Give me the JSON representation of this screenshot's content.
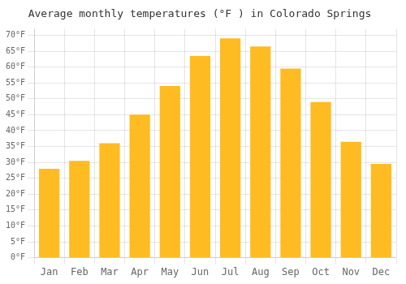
{
  "chart_data": {
    "type": "bar",
    "title": "Average monthly temperatures (°F ) in Colorado Springs",
    "categories": [
      "Jan",
      "Feb",
      "Mar",
      "Apr",
      "May",
      "Jun",
      "Jul",
      "Aug",
      "Sep",
      "Oct",
      "Nov",
      "Dec"
    ],
    "values": [
      28,
      30.5,
      36,
      45,
      54,
      63.5,
      69,
      66.5,
      59.5,
      49,
      36.5,
      29.5
    ],
    "color": "#FFBB22",
    "ylim": [
      0,
      72
    ],
    "yticks": [
      {
        "value": 0,
        "label": "0°F"
      },
      {
        "value": 5,
        "label": "5°F"
      },
      {
        "value": 10,
        "label": "10°F"
      },
      {
        "value": 15,
        "label": "15°F"
      },
      {
        "value": 20,
        "label": "20°F"
      },
      {
        "value": 25,
        "label": "25°F"
      },
      {
        "value": 30,
        "label": "30°F"
      },
      {
        "value": 35,
        "label": "35°F"
      },
      {
        "value": 40,
        "label": "40°F"
      },
      {
        "value": 45,
        "label": "45°F"
      },
      {
        "value": 50,
        "label": "50°F"
      },
      {
        "value": 55,
        "label": "55°F"
      },
      {
        "value": 60,
        "label": "60°F"
      },
      {
        "value": 65,
        "label": "65°F"
      },
      {
        "value": 70,
        "label": "70°F"
      }
    ],
    "grid": true
  }
}
